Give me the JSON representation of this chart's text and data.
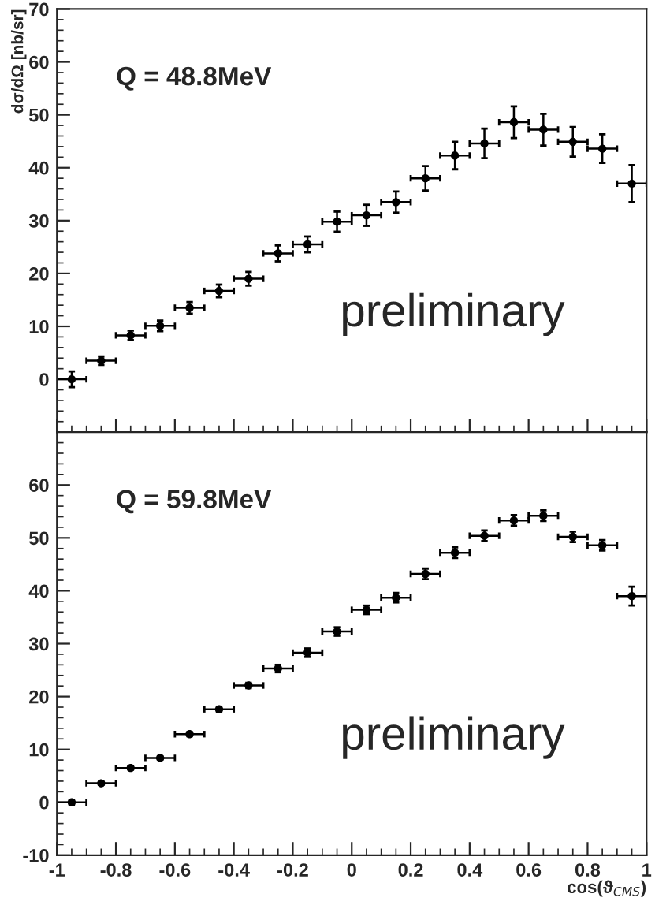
{
  "chart_data": [
    {
      "type": "scatter",
      "ylabel": "dσ/dΩ [nb/sr]",
      "annotations": [
        "Q = 48.8MeV",
        "preliminary"
      ],
      "x": [
        -0.95,
        -0.85,
        -0.75,
        -0.65,
        -0.55,
        -0.45,
        -0.35,
        -0.25,
        -0.15,
        -0.05,
        0.05,
        0.15,
        0.25,
        0.35,
        0.45,
        0.55,
        0.65,
        0.75,
        0.85,
        0.95
      ],
      "series": [
        {
          "color": "#000000",
          "values": [
            0,
            3.5,
            8.3,
            10.1,
            13.5,
            16.7,
            19.0,
            23.8,
            25.5,
            29.8,
            31.0,
            33.5,
            38.0,
            42.3,
            44.6,
            48.6,
            47.2,
            44.9,
            43.6,
            37.0
          ],
          "errors": [
            1.5,
            0.8,
            0.9,
            1.0,
            1.1,
            1.2,
            1.3,
            1.5,
            1.5,
            1.9,
            2.0,
            2.0,
            2.3,
            2.6,
            2.8,
            3.0,
            3.0,
            2.8,
            2.7,
            3.5
          ],
          "xerrors": [
            0.05,
            0.05,
            0.05,
            0.05,
            0.05,
            0.05,
            0.05,
            0.05,
            0.05,
            0.05,
            0.05,
            0.05,
            0.05,
            0.05,
            0.05,
            0.05,
            0.05,
            0.05,
            0.05,
            0.05
          ]
        }
      ],
      "xlim": [
        -1,
        1
      ],
      "xticks": [
        -1,
        -0.8,
        -0.6,
        -0.4,
        -0.2,
        0,
        0.2,
        0.4,
        0.6,
        0.8,
        1
      ],
      "ylim": [
        -10,
        70
      ],
      "yticks": [
        0,
        10,
        20,
        30,
        40,
        50,
        60,
        70
      ],
      "tick_labels": "y",
      "marker": "circle",
      "grid": false,
      "legend": false
    },
    {
      "type": "scatter",
      "xlabel": "cos(ϑ$_{CMS}$)",
      "annotations": [
        "Q = 59.8MeV",
        "preliminary"
      ],
      "x": [
        -0.95,
        -0.85,
        -0.75,
        -0.65,
        -0.55,
        -0.45,
        -0.35,
        -0.25,
        -0.15,
        -0.05,
        0.05,
        0.15,
        0.25,
        0.35,
        0.45,
        0.55,
        0.65,
        0.75,
        0.85,
        0.95
      ],
      "series": [
        {
          "color": "#000000",
          "values": [
            0,
            3.6,
            6.5,
            8.4,
            12.9,
            17.6,
            22.1,
            25.3,
            28.3,
            32.3,
            36.4,
            38.7,
            43.2,
            47.2,
            50.4,
            53.3,
            54.2,
            50.2,
            48.6,
            39.0
          ],
          "errors": [
            0.5,
            0.3,
            0.3,
            0.3,
            0.4,
            0.5,
            0.5,
            0.7,
            0.8,
            0.8,
            0.8,
            0.9,
            1.0,
            1.0,
            1.0,
            1.0,
            1.0,
            1.0,
            1.0,
            1.8
          ],
          "xerrors": [
            0.05,
            0.05,
            0.05,
            0.05,
            0.05,
            0.05,
            0.05,
            0.05,
            0.05,
            0.05,
            0.05,
            0.05,
            0.05,
            0.05,
            0.05,
            0.05,
            0.05,
            0.05,
            0.05,
            0.05
          ]
        }
      ],
      "xlim": [
        -1,
        1
      ],
      "xticks": [
        -1,
        -0.8,
        -0.6,
        -0.4,
        -0.2,
        0,
        0.2,
        0.4,
        0.6,
        0.8,
        1
      ],
      "ylim": [
        -10,
        70
      ],
      "yticks": [
        -10,
        0,
        10,
        20,
        30,
        40,
        50,
        60
      ],
      "marker": "circle",
      "grid": false,
      "legend": false
    }
  ]
}
